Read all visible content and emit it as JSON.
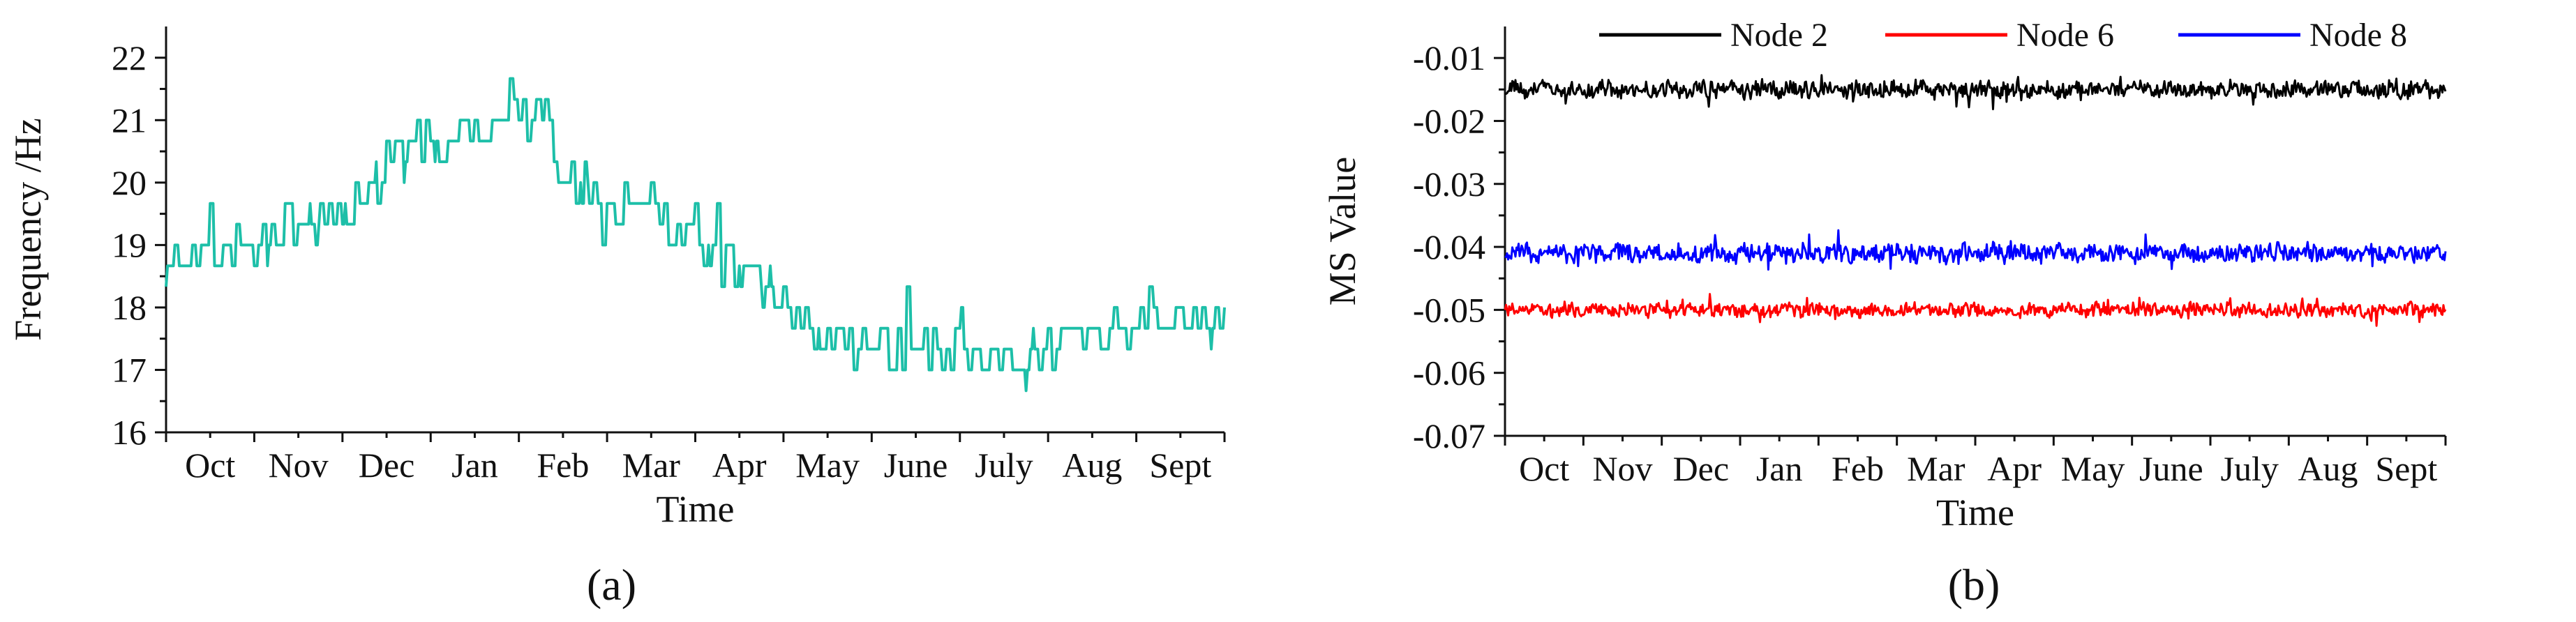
{
  "colors": {
    "frequency": "#1dbfa8",
    "node2": "#000000",
    "node6": "#ff0000",
    "node8": "#0000ff",
    "axis": "#111111"
  },
  "chart_data": [
    {
      "type": "line",
      "panel_label": "(a)",
      "xlabel": "Time",
      "ylabel": "Frequency /Hz",
      "ylim": [
        16,
        22.5
      ],
      "yticks": [
        "16",
        "17",
        "18",
        "19",
        "20",
        "21",
        "22"
      ],
      "categories": [
        "Oct",
        "Nov",
        "Dec",
        "Jan",
        "Feb",
        "Mar",
        "Apr",
        "May",
        "June",
        "July",
        "Aug",
        "Sept"
      ],
      "x_months": [
        0.5,
        1.5,
        2.5,
        3.5,
        4.5,
        5.5,
        6.5,
        7.5,
        8.5,
        9.5,
        10.5,
        11.5
      ],
      "xlim": [
        0,
        12
      ],
      "grid": false,
      "series": [
        {
          "x": [
            0.0,
            0.25,
            0.5,
            0.75,
            1.0,
            1.25,
            1.5,
            1.75,
            2.0,
            2.25,
            2.5,
            2.75,
            3.0,
            3.25,
            3.5,
            3.75,
            4.0,
            4.25,
            4.5,
            4.75,
            5.0,
            5.25,
            5.5,
            5.75,
            6.0,
            6.25,
            6.5,
            6.75,
            7.0,
            7.25,
            7.5,
            7.75,
            8.0,
            8.25,
            8.5,
            8.75,
            9.0,
            9.25,
            9.5,
            9.75,
            10.0,
            10.25,
            10.5,
            10.75,
            11.0,
            11.25,
            11.5,
            11.75,
            12.0
          ],
          "values": [
            18.2,
            18.7,
            18.9,
            19.0,
            19.0,
            19.1,
            19.2,
            19.4,
            19.6,
            19.8,
            20.0,
            20.4,
            20.7,
            20.8,
            20.9,
            21.0,
            21.2,
            20.9,
            20.3,
            19.8,
            19.6,
            19.5,
            19.4,
            19.2,
            19.0,
            18.8,
            18.6,
            18.4,
            18.0,
            17.8,
            17.6,
            17.4,
            17.4,
            17.3,
            17.3,
            17.2,
            17.2,
            17.3,
            17.3,
            17.3,
            17.4,
            17.4,
            17.5,
            17.6,
            17.8,
            17.9,
            18.0,
            17.7,
            17.9
          ],
          "noise": 0.45
        }
      ]
    },
    {
      "type": "line",
      "panel_label": "(b)",
      "xlabel": "Time",
      "ylabel": "MS Value",
      "ylim": [
        -0.07,
        -0.005
      ],
      "yticks": [
        "-0.01",
        "-0.02",
        "-0.03",
        "-0.04",
        "-0.05",
        "-0.06",
        "-0.07"
      ],
      "categories": [
        "Oct",
        "Nov",
        "Dec",
        "Jan",
        "Feb",
        "Mar",
        "Apr",
        "May",
        "June",
        "July",
        "Aug",
        "Sept"
      ],
      "x_months": [
        0.5,
        1.5,
        2.5,
        3.5,
        4.5,
        5.5,
        6.5,
        7.5,
        8.5,
        9.5,
        10.5,
        11.5
      ],
      "xlim": [
        0,
        12
      ],
      "grid": false,
      "legend_position": "top",
      "series": [
        {
          "name": "Node 2",
          "color_key": "node2",
          "mean": -0.015,
          "noise": 0.0016
        },
        {
          "name": "Node 6",
          "color_key": "node6",
          "mean": -0.05,
          "noise": 0.0013
        },
        {
          "name": "Node 8",
          "color_key": "node8",
          "mean": -0.041,
          "noise": 0.0017
        }
      ]
    }
  ]
}
